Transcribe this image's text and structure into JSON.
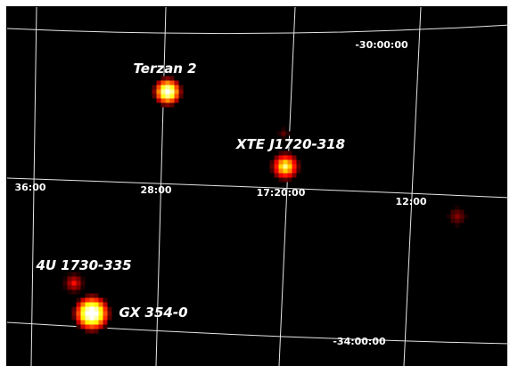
{
  "grid_labels": {
    "dec": [
      "-30:00:00",
      "-34:00:00"
    ],
    "ra": [
      "36:00",
      "28:00",
      "17:20:00",
      "12:00"
    ]
  },
  "sources": [
    {
      "label": "Terzan 2"
    },
    {
      "label": "XTE J1720-318"
    },
    {
      "label": "4U 1730-335"
    },
    {
      "label": "GX 354-0"
    }
  ]
}
